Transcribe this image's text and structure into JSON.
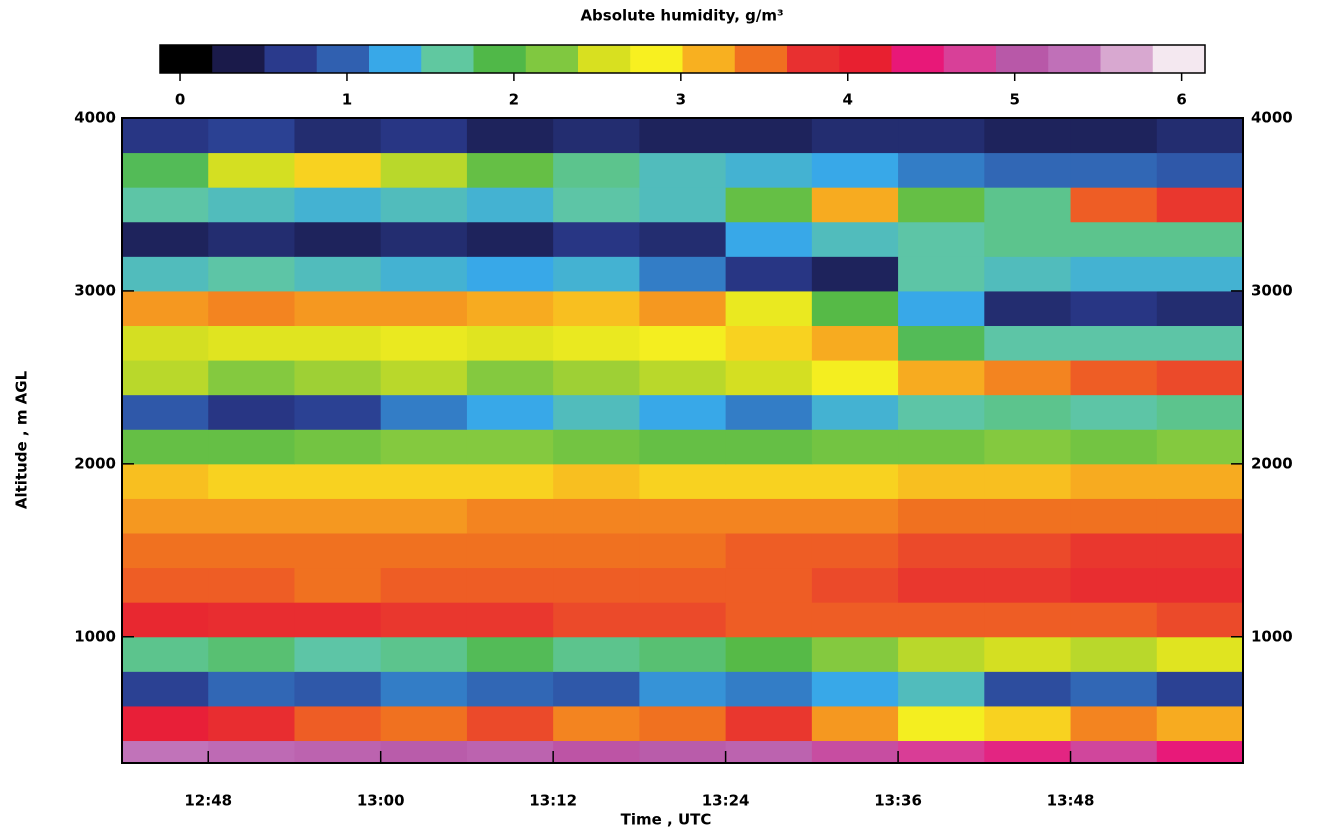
{
  "chart_data": {
    "type": "heatmap",
    "colorbar_title": "Absolute humidity, g/m³",
    "xlabel": "Time , UTC",
    "ylabel": "Altitude , m AGL",
    "x": [
      765,
      771,
      777,
      783,
      789,
      795,
      801,
      807,
      813,
      819,
      825,
      831,
      837
    ],
    "y": [
      300,
      500,
      700,
      900,
      1100,
      1300,
      1500,
      1700,
      1900,
      2100,
      2300,
      2500,
      2700,
      2900,
      3100,
      3300,
      3500,
      3700,
      3900
    ],
    "z": [
      [
        5.5,
        5.4,
        5.3,
        5.2,
        5.3,
        5.1,
        5.2,
        5.3,
        5.0,
        4.8,
        4.6,
        4.9,
        4.5
      ],
      [
        4.2,
        3.9,
        3.6,
        3.5,
        3.7,
        3.4,
        3.5,
        3.8,
        3.3,
        2.8,
        3.0,
        3.4,
        3.2
      ],
      [
        0.6,
        0.9,
        0.8,
        1.0,
        0.9,
        0.8,
        1.1,
        1.0,
        1.2,
        1.4,
        0.7,
        0.9,
        0.6
      ],
      [
        1.6,
        1.7,
        1.5,
        1.6,
        1.8,
        1.6,
        1.7,
        1.9,
        2.2,
        2.4,
        2.5,
        2.4,
        2.6
      ],
      [
        4.0,
        3.9,
        3.9,
        3.8,
        3.8,
        3.7,
        3.7,
        3.6,
        3.6,
        3.6,
        3.6,
        3.6,
        3.7
      ],
      [
        3.6,
        3.6,
        3.5,
        3.6,
        3.6,
        3.6,
        3.6,
        3.6,
        3.7,
        3.8,
        3.8,
        3.9,
        3.9
      ],
      [
        3.5,
        3.5,
        3.5,
        3.5,
        3.5,
        3.5,
        3.5,
        3.6,
        3.6,
        3.7,
        3.7,
        3.8,
        3.8
      ],
      [
        3.3,
        3.3,
        3.3,
        3.3,
        3.4,
        3.4,
        3.4,
        3.4,
        3.4,
        3.5,
        3.5,
        3.5,
        3.5
      ],
      [
        3.1,
        3.0,
        3.0,
        3.0,
        3.0,
        3.1,
        3.0,
        3.0,
        3.0,
        3.1,
        3.1,
        3.2,
        3.2
      ],
      [
        2.0,
        2.0,
        2.1,
        2.2,
        2.2,
        2.1,
        2.0,
        2.0,
        2.1,
        2.1,
        2.2,
        2.1,
        2.2
      ],
      [
        0.8,
        0.5,
        0.6,
        1.0,
        1.2,
        1.4,
        1.2,
        1.0,
        1.3,
        1.5,
        1.6,
        1.5,
        1.6
      ],
      [
        2.4,
        2.2,
        2.3,
        2.4,
        2.2,
        2.3,
        2.4,
        2.5,
        2.8,
        3.2,
        3.4,
        3.6,
        3.7
      ],
      [
        2.5,
        2.6,
        2.6,
        2.7,
        2.6,
        2.7,
        2.8,
        3.0,
        3.2,
        1.8,
        1.5,
        1.5,
        1.5
      ],
      [
        3.3,
        3.4,
        3.3,
        3.3,
        3.2,
        3.1,
        3.3,
        2.7,
        1.9,
        1.2,
        0.4,
        0.5,
        0.4
      ],
      [
        1.4,
        1.5,
        1.4,
        1.3,
        1.2,
        1.3,
        1.0,
        0.5,
        0.3,
        1.5,
        1.4,
        1.3,
        1.3
      ],
      [
        0.3,
        0.4,
        0.3,
        0.4,
        0.3,
        0.5,
        0.4,
        1.2,
        1.4,
        1.5,
        1.6,
        1.6,
        1.6
      ],
      [
        1.5,
        1.4,
        1.3,
        1.4,
        1.3,
        1.5,
        1.4,
        2.0,
        3.2,
        2.0,
        1.6,
        3.6,
        3.8
      ],
      [
        1.8,
        2.5,
        3.0,
        2.4,
        2.0,
        1.6,
        1.4,
        1.3,
        1.2,
        1.0,
        0.9,
        0.9,
        0.8
      ],
      [
        0.5,
        0.6,
        0.4,
        0.5,
        0.3,
        0.4,
        0.3,
        0.3,
        0.4,
        0.4,
        0.3,
        0.3,
        0.4
      ]
    ],
    "xlim": [
      762,
      840
    ],
    "xticks": [
      {
        "value": 768,
        "label": "12:48"
      },
      {
        "value": 780,
        "label": "13:00"
      },
      {
        "value": 792,
        "label": "13:12"
      },
      {
        "value": 804,
        "label": "13:24"
      },
      {
        "value": 816,
        "label": "13:36"
      },
      {
        "value": 828,
        "label": "13:48"
      }
    ],
    "ylim": [
      270,
      4000
    ],
    "yticks": [
      1000,
      2000,
      3000,
      4000
    ],
    "zlim": [
      -0.12,
      6.14
    ],
    "zticks": [
      0,
      1,
      2,
      3,
      4,
      5,
      6
    ],
    "colorscale": [
      "#000000",
      "#1a1a4a",
      "#2a3a8c",
      "#3060b0",
      "#38a8e8",
      "#60c8a0",
      "#50b848",
      "#80c840",
      "#d8e020",
      "#f8f020",
      "#f8b020",
      "#f07020",
      "#e83030",
      "#e82030",
      "#e81878",
      "#d84098",
      "#b858a8",
      "#c070b8",
      "#d8a8d0",
      "#f4e8f0"
    ]
  }
}
